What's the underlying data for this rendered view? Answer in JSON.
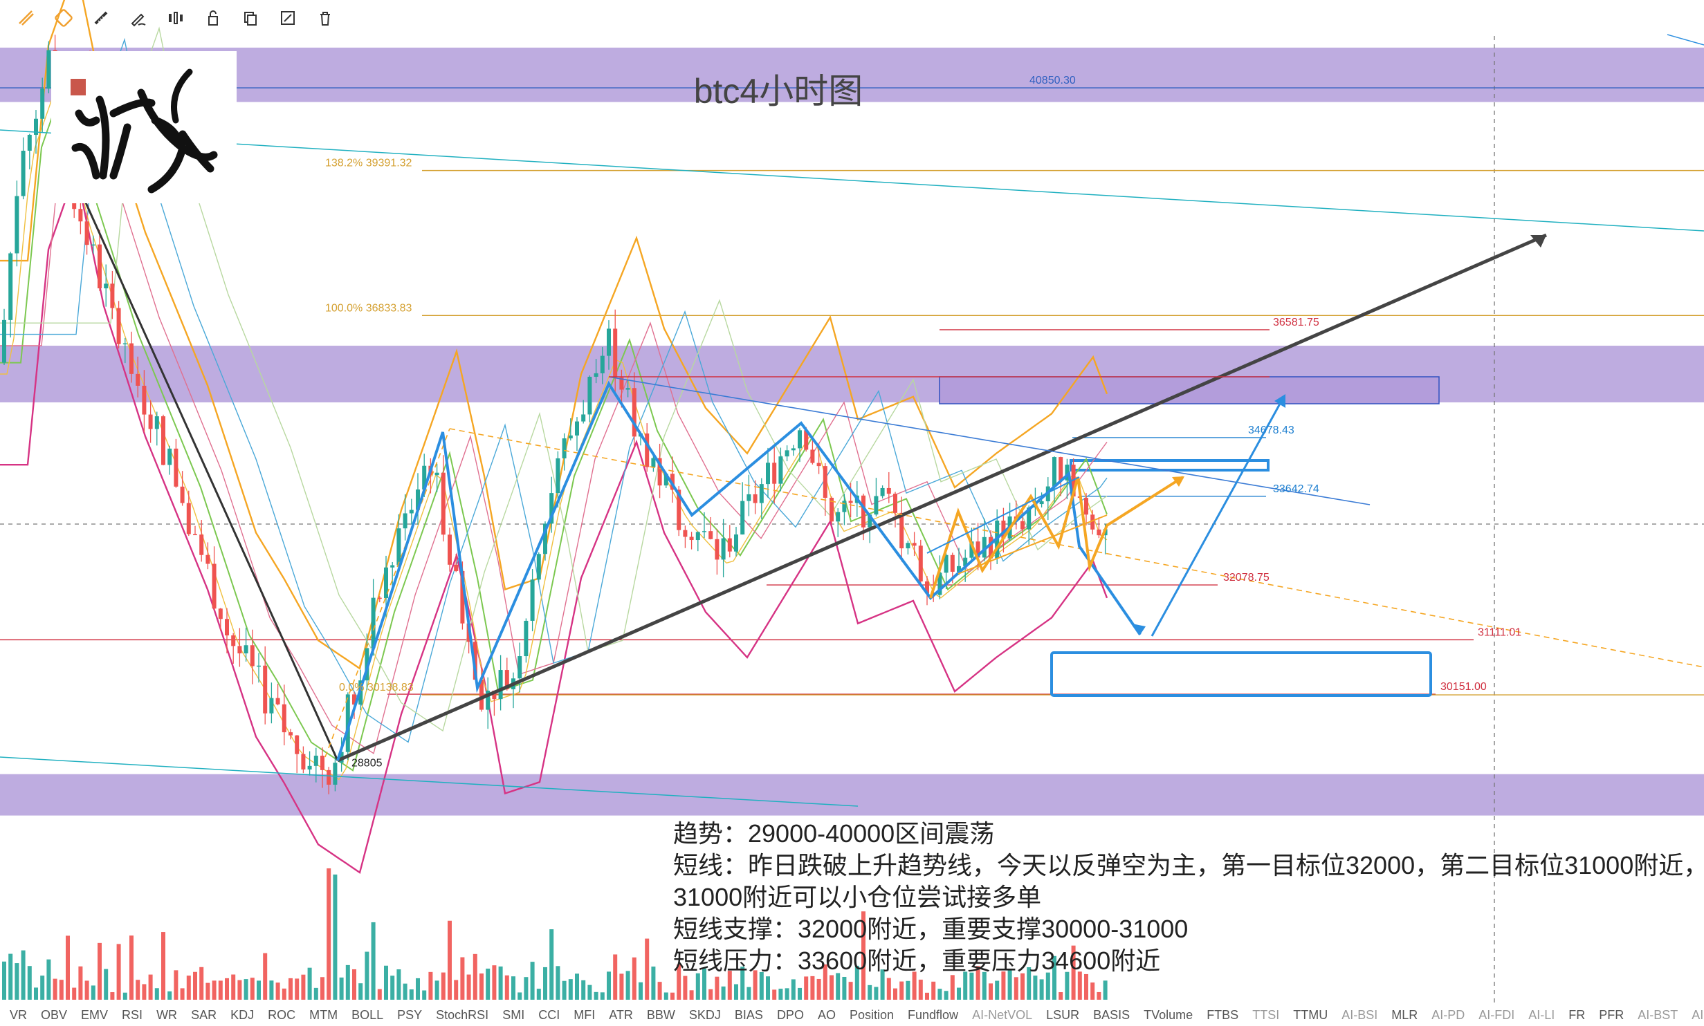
{
  "title": "btc4小时图",
  "toolbar": {
    "items": [
      {
        "name": "draw-line-tool-icon"
      },
      {
        "name": "draw-channel-tool-icon"
      },
      {
        "name": "ruler-tool-icon"
      },
      {
        "name": "pen-tool-icon"
      },
      {
        "name": "candles-tool-icon"
      },
      {
        "name": "lock-tool-icon"
      },
      {
        "name": "copy-tool-icon"
      },
      {
        "name": "edit-tool-icon"
      },
      {
        "name": "trash-tool-icon"
      }
    ],
    "icon_color": "#f0a030"
  },
  "chart_data": {
    "type": "candlestick",
    "title": "btc4小时图",
    "ylim": [
      28200,
      42400
    ],
    "levels": [
      {
        "label": "40850.30",
        "value": 40850.3,
        "color": "#3060c0",
        "kind": "price"
      },
      {
        "label": "138.2% 39391.32",
        "value": 39391.32,
        "color": "#d4a030",
        "kind": "fib"
      },
      {
        "label": "100.0% 36833.83",
        "value": 36833.83,
        "color": "#d4a030",
        "kind": "fib"
      },
      {
        "label": "36581.75",
        "value": 36581.75,
        "color": "#d03040",
        "kind": "price"
      },
      {
        "label": "34678.43",
        "value": 34678.43,
        "color": "#2080d0",
        "kind": "price"
      },
      {
        "label": "33642.74",
        "value": 33642.74,
        "color": "#2080d0",
        "kind": "price"
      },
      {
        "label": "32078.75",
        "value": 32078.75,
        "color": "#d03040",
        "kind": "price"
      },
      {
        "label": "31111.01",
        "value": 31111.01,
        "color": "#d03040",
        "kind": "price"
      },
      {
        "label": "30151.00",
        "value": 30151.0,
        "color": "#d03040",
        "kind": "price"
      },
      {
        "label": "0.0% 30138.83",
        "value": 30138.83,
        "color": "#d4a030",
        "kind": "fib"
      },
      {
        "label": "28805",
        "value": 28805,
        "color": "#222222",
        "kind": "low"
      }
    ],
    "zones": [
      {
        "from": 40600,
        "to": 41560,
        "color": "#b39ddb"
      },
      {
        "from": 35300,
        "to": 36300,
        "color": "#b39ddb"
      },
      {
        "from": 28010,
        "to": 28740,
        "color": "#b39ddb"
      }
    ],
    "colors": {
      "up": "#26a69a",
      "down": "#ef5350"
    }
  },
  "notes": [
    "趋势：29000-40000区间震荡",
    "短线：昨日跌破上升趋势线，今天以反弹空为主，第一目标位32000，第二目标位31000附近，",
    "31000附近可以小仓位尝试接多单",
    "短线支撑：32000附近，重要支撑30000-31000",
    "短线压力：33600附近，重要压力34600附近"
  ],
  "indicators": [
    "VR",
    "OBV",
    "EMV",
    "RSI",
    "WR",
    "SAR",
    "KDJ",
    "ROC",
    "MTM",
    "BOLL",
    "PSY",
    "StochRSI",
    "SMI",
    "CCI",
    "MFI",
    "ATR",
    "BBW",
    "SKDJ",
    "BIAS",
    "DPO",
    "AO",
    "Position",
    "Fundflow",
    "AI-NetVOL",
    "LSUR",
    "BASIS",
    "TVolume",
    "FTBS",
    "TTSI",
    "TTMU",
    "AI-BSI",
    "MLR",
    "AI-PD",
    "AI-FDI",
    "AI-LI",
    "FR",
    "PFR",
    "AI-BST",
    "AI-CMLSI"
  ],
  "ai_indicators": [
    "AI-NetVOL",
    "TTSI",
    "AI-BSI",
    "AI-PD",
    "AI-FDI",
    "AI-LI",
    "AI-BST",
    "AI-CMLSI"
  ]
}
